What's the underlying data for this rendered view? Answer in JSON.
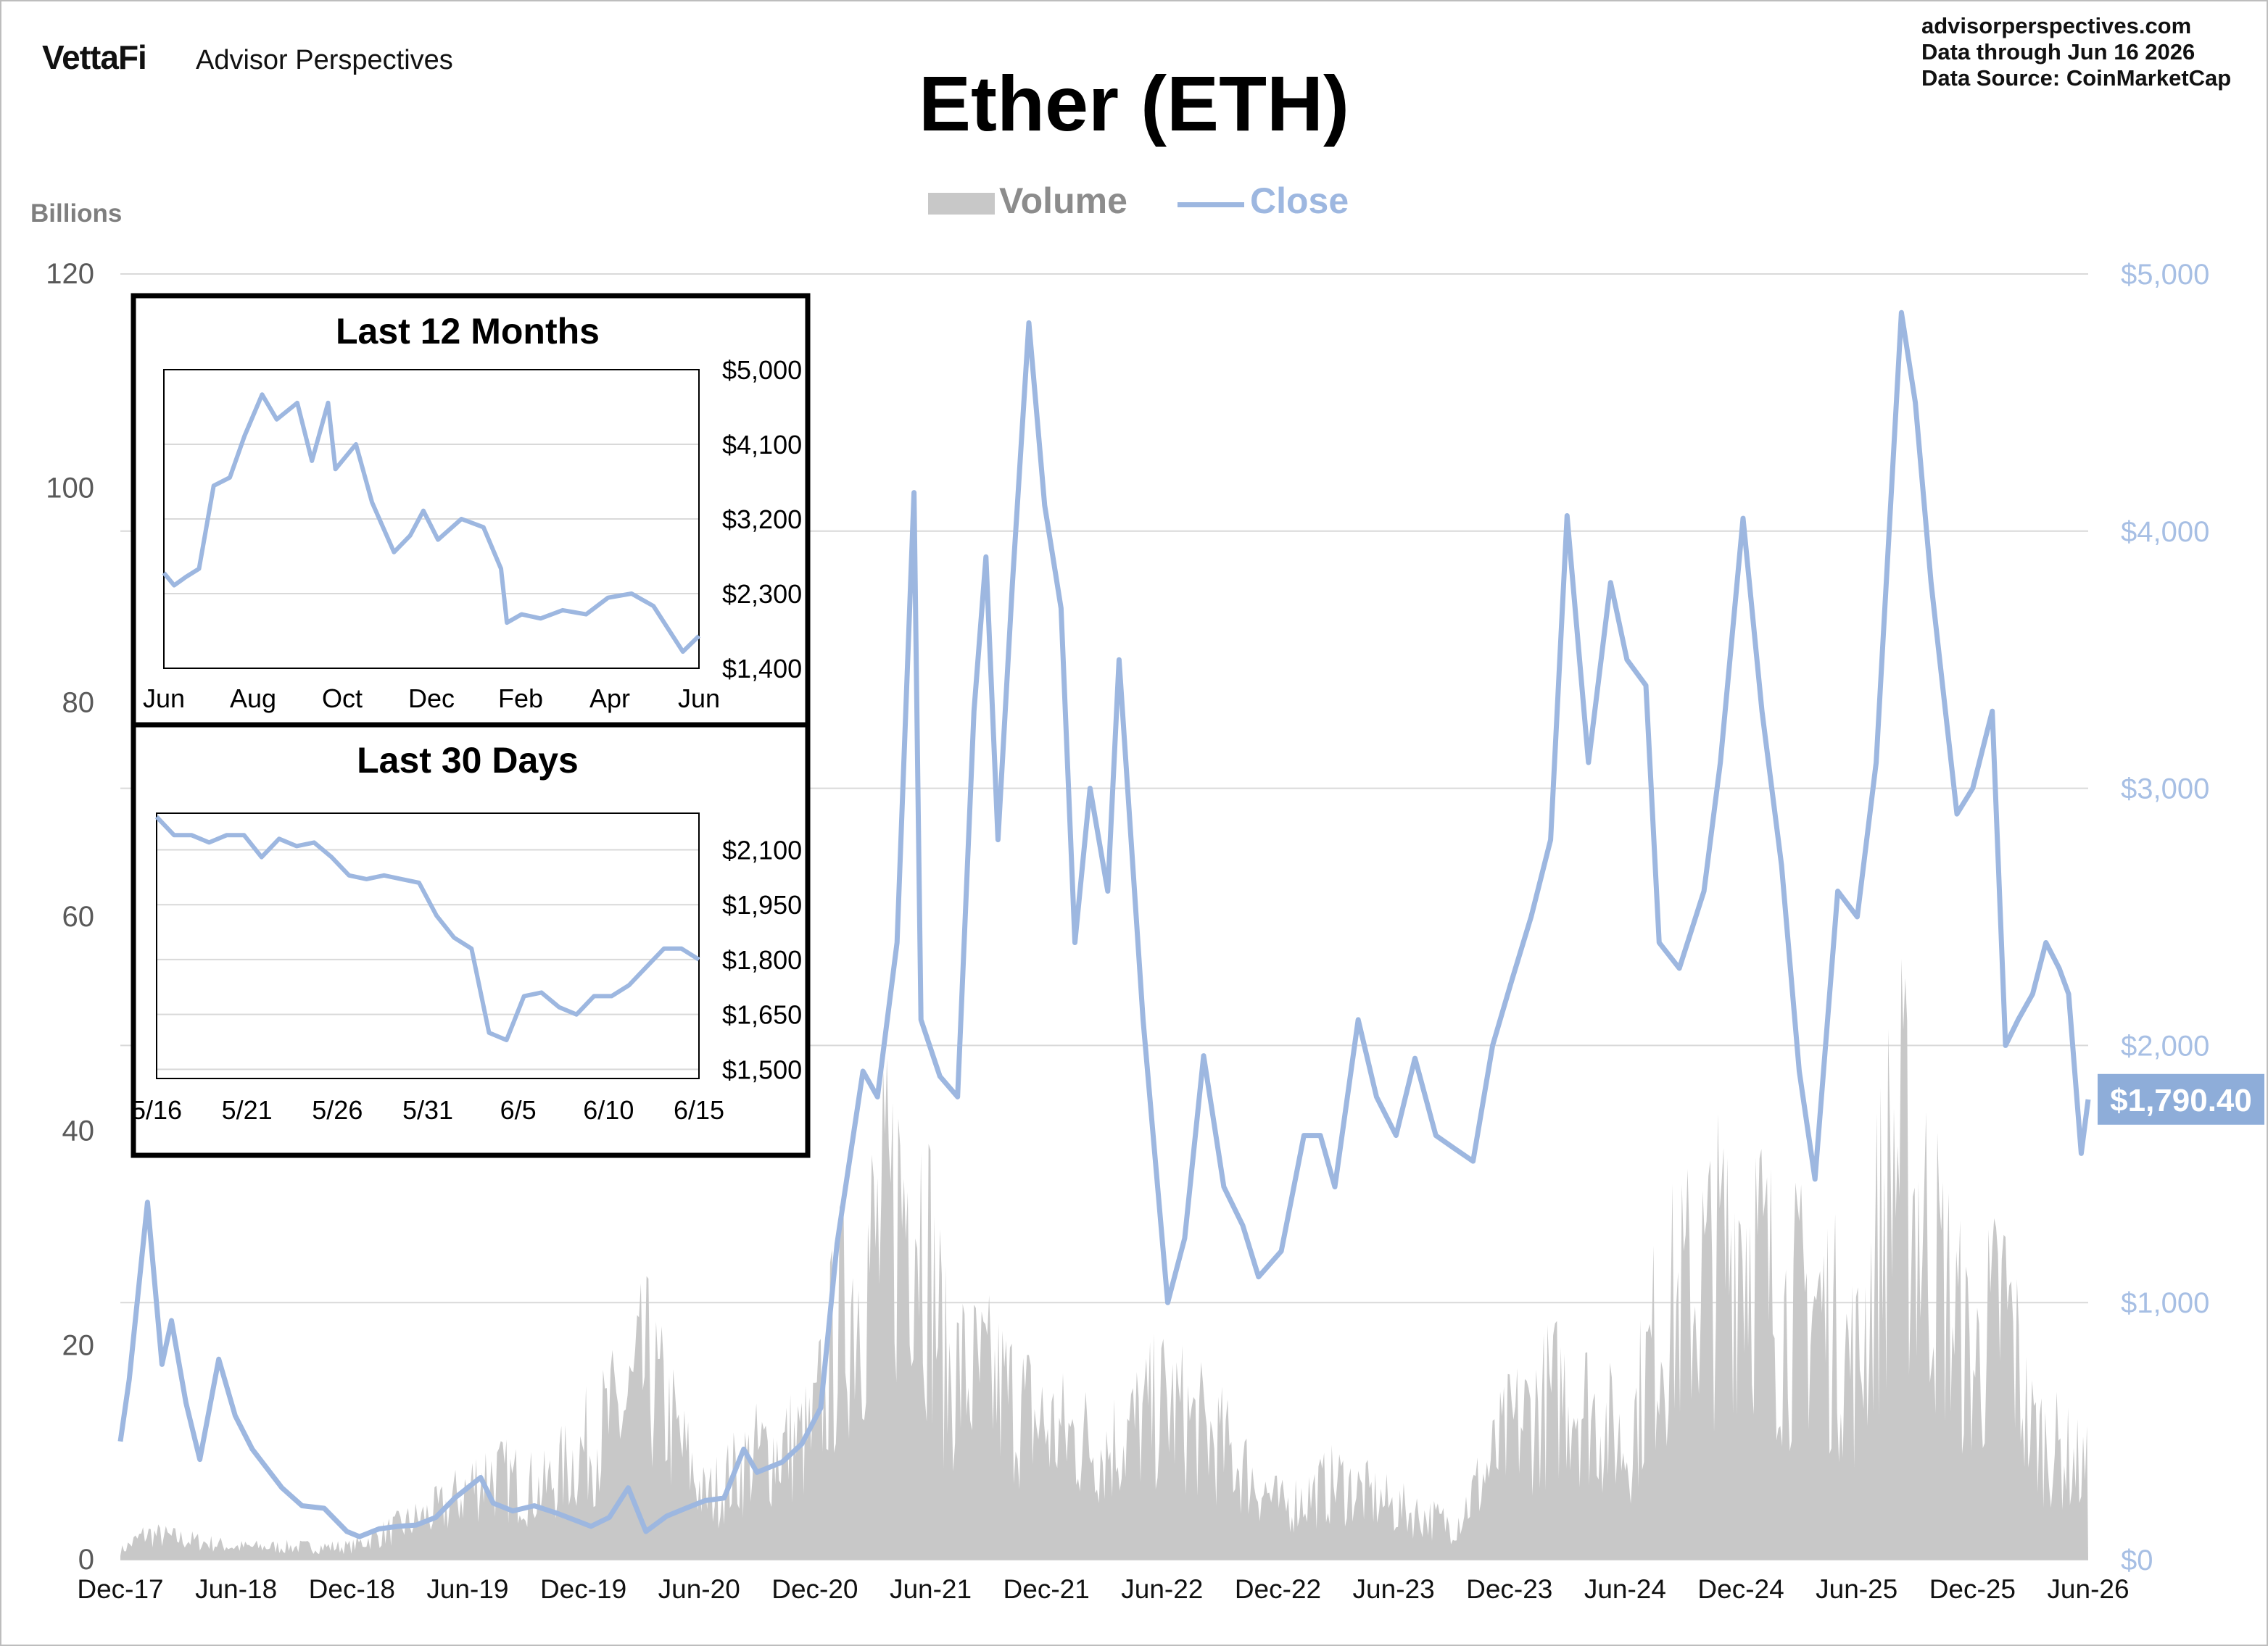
{
  "header": {
    "brand_logo": "VettaFi",
    "brand_name": "Advisor Perspectives",
    "source_lines": [
      "advisorperspectives.com",
      "Data through  Jun 16 2026",
      "Data Source:  CoinMarketCap"
    ]
  },
  "title": "Ether (ETH)",
  "units_label": "Billions",
  "colors": {
    "volume": "#c8c8c8",
    "close": "#9db7e0",
    "close_label_bg": "#8eadd9",
    "axis_text": "#595959",
    "right_axis_text": "#a7bfe4",
    "grid": "#d9d9d9"
  },
  "chart_data": [
    {
      "type": "line",
      "series": [
        {
          "name": "Volume",
          "type": "area",
          "color": "#c8c8c8",
          "axis": "left"
        },
        {
          "name": "Close",
          "type": "line",
          "color": "#9db7e0",
          "axis": "right"
        }
      ],
      "x_ticks": [
        "Dec-17",
        "Jun-18",
        "Dec-18",
        "Jun-19",
        "Dec-19",
        "Jun-20",
        "Dec-20",
        "Jun-21",
        "Dec-21",
        "Jun-22",
        "Dec-22",
        "Jun-23",
        "Dec-23",
        "Jun-24",
        "Dec-24",
        "Jun-25",
        "Dec-25",
        "Jun-26"
      ],
      "x_start": "2017-12-01",
      "x_end": "2026-06-16",
      "left_axis": {
        "ticks": [
          "0",
          "20",
          "40",
          "60",
          "80",
          "100",
          "120"
        ],
        "ylim": [
          0,
          120
        ]
      },
      "right_axis": {
        "ticks": [
          "$0",
          "$1,000",
          "$2,000",
          "$3,000",
          "$4,000",
          "$5,000"
        ],
        "ylim": [
          0,
          5000
        ]
      },
      "last_close_label": "$1,790.40",
      "last_close": 1790.4,
      "close_points": [
        [
          "2017-12-01",
          460
        ],
        [
          "2017-12-15",
          700
        ],
        [
          "2018-01-13",
          1390
        ],
        [
          "2018-02-05",
          760
        ],
        [
          "2018-02-20",
          930
        ],
        [
          "2018-03-15",
          610
        ],
        [
          "2018-04-06",
          390
        ],
        [
          "2018-05-06",
          780
        ],
        [
          "2018-06-01",
          560
        ],
        [
          "2018-06-28",
          430
        ],
        [
          "2018-08-14",
          280
        ],
        [
          "2018-09-15",
          210
        ],
        [
          "2018-10-20",
          200
        ],
        [
          "2018-11-25",
          110
        ],
        [
          "2018-12-15",
          90
        ],
        [
          "2019-01-15",
          120
        ],
        [
          "2019-02-15",
          130
        ],
        [
          "2019-03-15",
          135
        ],
        [
          "2019-04-15",
          165
        ],
        [
          "2019-05-15",
          240
        ],
        [
          "2019-06-25",
          320
        ],
        [
          "2019-07-15",
          220
        ],
        [
          "2019-08-15",
          190
        ],
        [
          "2019-09-18",
          210
        ],
        [
          "2019-10-25",
          180
        ],
        [
          "2019-12-17",
          130
        ],
        [
          "2020-01-15",
          165
        ],
        [
          "2020-02-14",
          280
        ],
        [
          "2020-03-13",
          110
        ],
        [
          "2020-04-15",
          170
        ],
        [
          "2020-05-15",
          200
        ],
        [
          "2020-06-15",
          230
        ],
        [
          "2020-07-15",
          240
        ],
        [
          "2020-08-15",
          430
        ],
        [
          "2020-09-05",
          340
        ],
        [
          "2020-10-15",
          380
        ],
        [
          "2020-11-15",
          450
        ],
        [
          "2020-12-15",
          590
        ],
        [
          "2021-01-10",
          1230
        ],
        [
          "2021-02-20",
          1900
        ],
        [
          "2021-03-15",
          1800
        ],
        [
          "2021-04-15",
          2400
        ],
        [
          "2021-05-12",
          4150
        ],
        [
          "2021-05-23",
          2100
        ],
        [
          "2021-06-22",
          1880
        ],
        [
          "2021-07-20",
          1800
        ],
        [
          "2021-08-15",
          3300
        ],
        [
          "2021-09-03",
          3900
        ],
        [
          "2021-09-22",
          2800
        ],
        [
          "2021-10-15",
          3800
        ],
        [
          "2021-11-10",
          4810
        ],
        [
          "2021-12-05",
          4100
        ],
        [
          "2021-12-31",
          3700
        ],
        [
          "2022-01-22",
          2400
        ],
        [
          "2022-02-15",
          3000
        ],
        [
          "2022-03-15",
          2600
        ],
        [
          "2022-04-02",
          3500
        ],
        [
          "2022-05-10",
          2100
        ],
        [
          "2022-06-18",
          1000
        ],
        [
          "2022-07-15",
          1250
        ],
        [
          "2022-08-14",
          1960
        ],
        [
          "2022-09-15",
          1450
        ],
        [
          "2022-10-15",
          1300
        ],
        [
          "2022-11-09",
          1100
        ],
        [
          "2022-12-15",
          1200
        ],
        [
          "2023-01-20",
          1650
        ],
        [
          "2023-02-15",
          1650
        ],
        [
          "2023-03-10",
          1450
        ],
        [
          "2023-04-16",
          2100
        ],
        [
          "2023-05-15",
          1800
        ],
        [
          "2023-06-15",
          1650
        ],
        [
          "2023-07-15",
          1950
        ],
        [
          "2023-08-17",
          1650
        ],
        [
          "2023-09-15",
          1600
        ],
        [
          "2023-10-15",
          1550
        ],
        [
          "2023-11-15",
          2000
        ],
        [
          "2023-12-15",
          2250
        ],
        [
          "2024-01-15",
          2500
        ],
        [
          "2024-02-15",
          2800
        ],
        [
          "2024-03-12",
          4060
        ],
        [
          "2024-04-15",
          3100
        ],
        [
          "2024-05-20",
          3800
        ],
        [
          "2024-06-15",
          3500
        ],
        [
          "2024-07-15",
          3400
        ],
        [
          "2024-08-05",
          2400
        ],
        [
          "2024-09-06",
          2300
        ],
        [
          "2024-10-15",
          2600
        ],
        [
          "2024-11-10",
          3100
        ],
        [
          "2024-12-16",
          4050
        ],
        [
          "2025-01-15",
          3300
        ],
        [
          "2025-02-15",
          2700
        ],
        [
          "2025-03-15",
          1900
        ],
        [
          "2025-04-09",
          1480
        ],
        [
          "2025-05-15",
          2600
        ],
        [
          "2025-06-15",
          2500
        ],
        [
          "2025-07-15",
          3100
        ],
        [
          "2025-08-24",
          4850
        ],
        [
          "2025-09-15",
          4500
        ],
        [
          "2025-10-10",
          3800
        ],
        [
          "2025-11-20",
          2900
        ],
        [
          "2025-12-15",
          3000
        ],
        [
          "2026-01-15",
          3300
        ],
        [
          "2026-02-05",
          2000
        ],
        [
          "2026-02-25",
          2100
        ],
        [
          "2026-03-20",
          2200
        ],
        [
          "2026-04-10",
          2400
        ],
        [
          "2026-05-01",
          2300
        ],
        [
          "2026-05-16",
          2200
        ],
        [
          "2026-06-05",
          1580
        ],
        [
          "2026-06-16",
          1790
        ]
      ],
      "volume_points": [
        [
          "2017-12-01",
          1
        ],
        [
          "2018-01-10",
          3
        ],
        [
          "2018-06-01",
          1.5
        ],
        [
          "2018-12-01",
          1.5
        ],
        [
          "2019-05-01",
          6
        ],
        [
          "2019-07-01",
          10
        ],
        [
          "2019-10-01",
          8
        ],
        [
          "2020-02-15",
          18
        ],
        [
          "2020-03-13",
          22
        ],
        [
          "2020-06-15",
          7
        ],
        [
          "2020-09-01",
          12
        ],
        [
          "2020-12-01",
          14
        ],
        [
          "2021-01-15",
          28
        ],
        [
          "2021-05-15",
          45
        ],
        [
          "2021-07-01",
          22
        ],
        [
          "2021-09-15",
          20
        ],
        [
          "2021-12-15",
          15
        ],
        [
          "2022-03-15",
          13
        ],
        [
          "2022-06-15",
          18
        ],
        [
          "2022-09-15",
          13
        ],
        [
          "2022-12-15",
          6
        ],
        [
          "2023-03-15",
          9
        ],
        [
          "2023-06-15",
          6
        ],
        [
          "2023-09-15",
          4
        ],
        [
          "2023-12-15",
          15
        ],
        [
          "2024-03-15",
          20
        ],
        [
          "2024-06-15",
          13
        ],
        [
          "2024-08-05",
          27
        ],
        [
          "2024-11-15",
          35
        ],
        [
          "2024-12-15",
          40
        ],
        [
          "2025-02-15",
          28
        ],
        [
          "2025-04-09",
          30
        ],
        [
          "2025-06-15",
          22
        ],
        [
          "2025-08-15",
          48
        ],
        [
          "2025-10-15",
          35
        ],
        [
          "2025-12-15",
          22
        ],
        [
          "2026-02-05",
          30
        ],
        [
          "2026-03-15",
          15
        ],
        [
          "2026-06-16",
          10
        ]
      ]
    },
    {
      "type": "line",
      "title": "Last 12 Months",
      "x_ticks": [
        "Jun",
        "Aug",
        "Oct",
        "Dec",
        "Feb",
        "Apr",
        "Jun"
      ],
      "y_ticks": [
        "$5,000",
        "$4,100",
        "$3,200",
        "$2,300",
        "$1,400"
      ],
      "ylim": [
        1400,
        5000
      ],
      "close_points": [
        [
          "2025-06-16",
          2550
        ],
        [
          "2025-06-23",
          2400
        ],
        [
          "2025-07-01",
          2500
        ],
        [
          "2025-07-10",
          2600
        ],
        [
          "2025-07-20",
          3600
        ],
        [
          "2025-07-31",
          3700
        ],
        [
          "2025-08-10",
          4200
        ],
        [
          "2025-08-22",
          4700
        ],
        [
          "2025-09-01",
          4400
        ],
        [
          "2025-09-15",
          4600
        ],
        [
          "2025-09-25",
          3900
        ],
        [
          "2025-10-06",
          4600
        ],
        [
          "2025-10-11",
          3800
        ],
        [
          "2025-10-25",
          4100
        ],
        [
          "2025-11-05",
          3400
        ],
        [
          "2025-11-20",
          2800
        ],
        [
          "2025-12-01",
          3000
        ],
        [
          "2025-12-10",
          3300
        ],
        [
          "2025-12-20",
          2950
        ],
        [
          "2026-01-05",
          3200
        ],
        [
          "2026-01-20",
          3100
        ],
        [
          "2026-02-01",
          2600
        ],
        [
          "2026-02-05",
          1950
        ],
        [
          "2026-02-15",
          2050
        ],
        [
          "2026-02-28",
          2000
        ],
        [
          "2026-03-15",
          2100
        ],
        [
          "2026-03-31",
          2050
        ],
        [
          "2026-04-15",
          2250
        ],
        [
          "2026-05-01",
          2300
        ],
        [
          "2026-05-16",
          2150
        ],
        [
          "2026-06-05",
          1600
        ],
        [
          "2026-06-16",
          1790
        ]
      ]
    },
    {
      "type": "line",
      "title": "Last 30 Days",
      "x_ticks": [
        "5/16",
        "5/21",
        "5/26",
        "5/31",
        "6/5",
        "6/10",
        "6/15"
      ],
      "y_ticks": [
        "$2,100",
        "$1,950",
        "$1,800",
        "$1,650",
        "$1,500"
      ],
      "ylim": [
        1475,
        2200
      ],
      "close_points": [
        [
          "2026-05-16",
          2190
        ],
        [
          "2026-05-17",
          2140
        ],
        [
          "2026-05-18",
          2140
        ],
        [
          "2026-05-19",
          2120
        ],
        [
          "2026-05-20",
          2140
        ],
        [
          "2026-05-21",
          2140
        ],
        [
          "2026-05-22",
          2080
        ],
        [
          "2026-05-23",
          2130
        ],
        [
          "2026-05-24",
          2110
        ],
        [
          "2026-05-25",
          2120
        ],
        [
          "2026-05-26",
          2080
        ],
        [
          "2026-05-27",
          2030
        ],
        [
          "2026-05-28",
          2020
        ],
        [
          "2026-05-29",
          2030
        ],
        [
          "2026-05-30",
          2020
        ],
        [
          "2026-05-31",
          2010
        ],
        [
          "2026-06-01",
          1920
        ],
        [
          "2026-06-02",
          1860
        ],
        [
          "2026-06-03",
          1830
        ],
        [
          "2026-06-04",
          1600
        ],
        [
          "2026-06-05",
          1580
        ],
        [
          "2026-06-06",
          1700
        ],
        [
          "2026-06-07",
          1710
        ],
        [
          "2026-06-08",
          1670
        ],
        [
          "2026-06-09",
          1650
        ],
        [
          "2026-06-10",
          1700
        ],
        [
          "2026-06-11",
          1700
        ],
        [
          "2026-06-12",
          1730
        ],
        [
          "2026-06-13",
          1780
        ],
        [
          "2026-06-14",
          1830
        ],
        [
          "2026-06-15",
          1830
        ],
        [
          "2026-06-16",
          1800
        ]
      ]
    }
  ]
}
